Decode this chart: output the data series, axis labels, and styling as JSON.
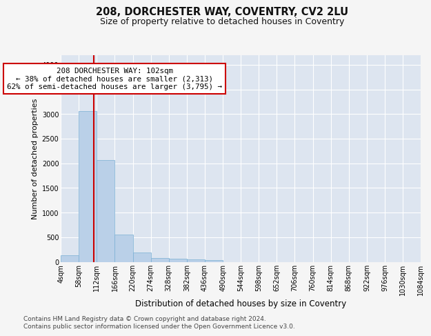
{
  "title1": "208, DORCHESTER WAY, COVENTRY, CV2 2LU",
  "title2": "Size of property relative to detached houses in Coventry",
  "xlabel": "Distribution of detached houses by size in Coventry",
  "ylabel": "Number of detached properties",
  "bar_color": "#bad0e8",
  "bar_edge_color": "#7aafd4",
  "plot_bg_color": "#dde5f0",
  "fig_bg_color": "#f5f5f5",
  "grid_color": "#ffffff",
  "bin_edges": [
    4,
    58,
    112,
    166,
    220,
    274,
    328,
    382,
    436,
    490,
    544,
    598,
    652,
    706,
    760,
    814,
    868,
    922,
    976,
    1030,
    1084
  ],
  "bar_heights": [
    130,
    3060,
    2060,
    560,
    195,
    80,
    60,
    45,
    40,
    0,
    0,
    0,
    0,
    0,
    0,
    0,
    0,
    0,
    0,
    0
  ],
  "property_size": 102,
  "vline_color": "#cc0000",
  "annotation_line1": "208 DORCHESTER WAY: 102sqm",
  "annotation_line2": "← 38% of detached houses are smaller (2,313)",
  "annotation_line3": "62% of semi-detached houses are larger (3,795) →",
  "annotation_box_facecolor": "#ffffff",
  "annotation_box_edgecolor": "#cc0000",
  "footer_text": "Contains HM Land Registry data © Crown copyright and database right 2024.\nContains public sector information licensed under the Open Government Licence v3.0.",
  "ylim_max": 4200,
  "title1_fontsize": 10.5,
  "title2_fontsize": 9,
  "xlabel_fontsize": 8.5,
  "ylabel_fontsize": 8,
  "tick_fontsize": 7,
  "annotation_fontsize": 7.8,
  "footer_fontsize": 6.5
}
